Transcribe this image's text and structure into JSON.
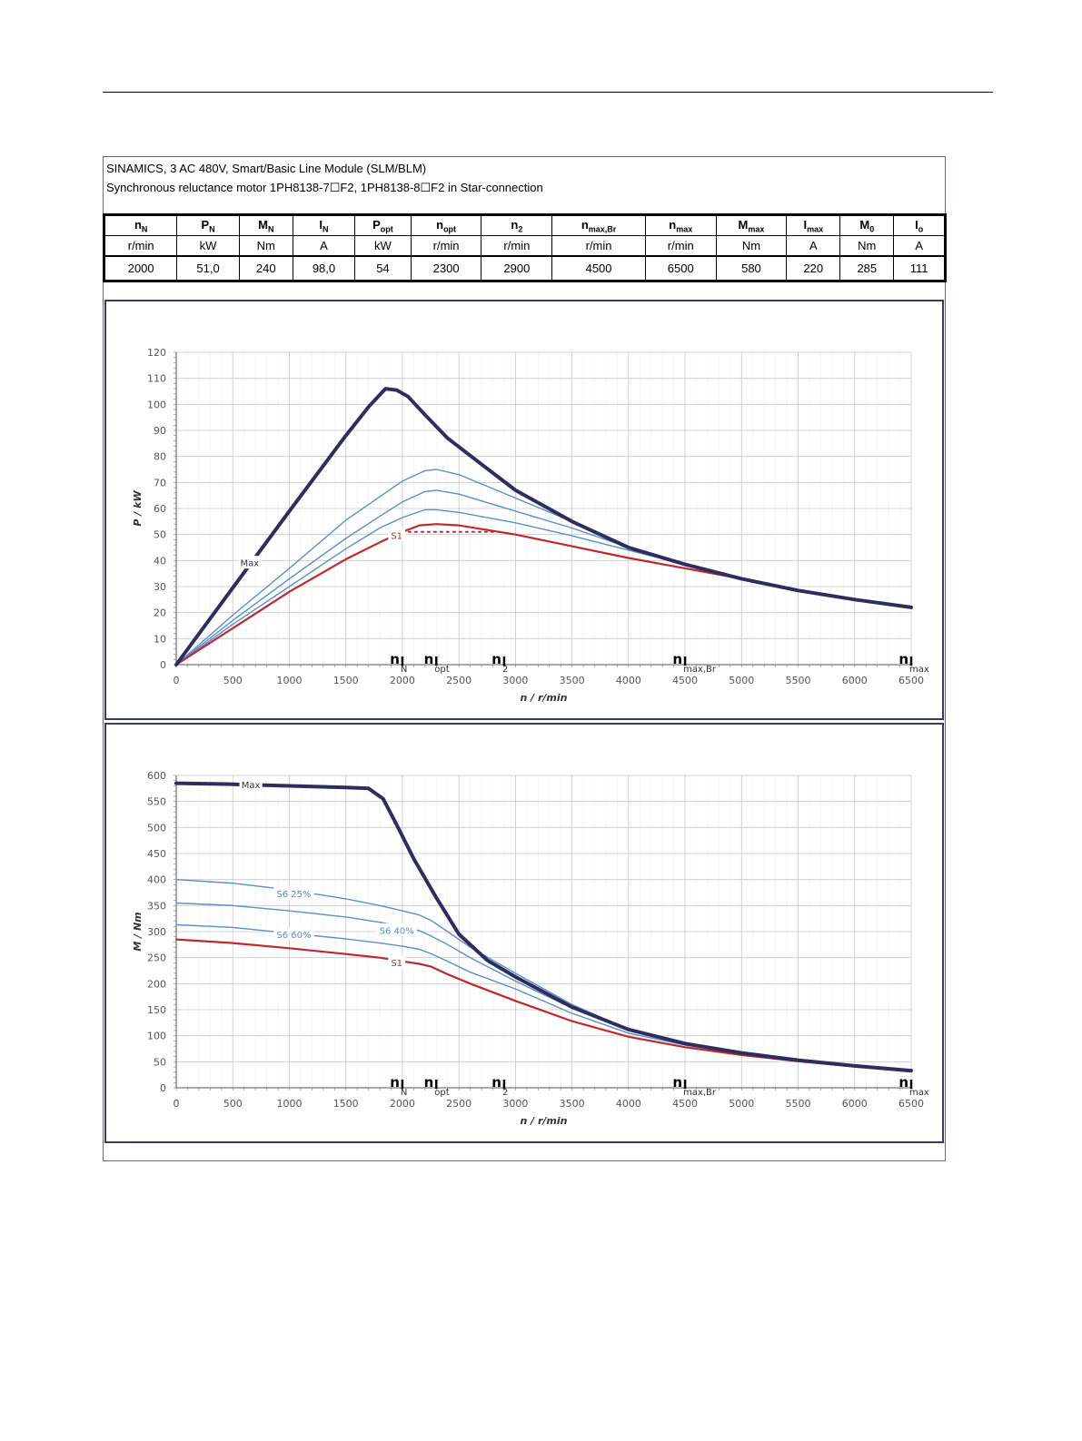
{
  "header": {
    "line1": "SINAMICS, 3 AC 480V, Smart/Basic Line Module (SLM/BLM)",
    "line2": "Synchronous reluctance motor  1PH8138-7☐F2,  1PH8138-8☐F2   in Star-connection"
  },
  "table": {
    "columns": [
      {
        "sym": "n",
        "sub": "N",
        "unit": "r/min",
        "value": "2000"
      },
      {
        "sym": "P",
        "sub": "N",
        "unit": "kW",
        "value": "51,0"
      },
      {
        "sym": "M",
        "sub": "N",
        "unit": "Nm",
        "value": "240"
      },
      {
        "sym": "I",
        "sub": "N",
        "unit": "A",
        "value": "98,0"
      },
      {
        "sym": "P",
        "sub": "opt",
        "unit": "kW",
        "value": "54"
      },
      {
        "sym": "n",
        "sub": "opt",
        "unit": "r/min",
        "value": "2300"
      },
      {
        "sym": "n",
        "sub": "2",
        "unit": "r/min",
        "value": "2900"
      },
      {
        "sym": "n",
        "sub": "max,Br",
        "unit": "r/min",
        "value": "4500"
      },
      {
        "sym": "n",
        "sub": "max",
        "unit": "r/min",
        "value": "6500"
      },
      {
        "sym": "M",
        "sub": "max",
        "unit": "Nm",
        "value": "580"
      },
      {
        "sym": "I",
        "sub": "max",
        "unit": "A",
        "value": "220"
      },
      {
        "sym": "M",
        "sub": "0",
        "unit": "Nm",
        "value": "285"
      },
      {
        "sym": "I",
        "sub": "o",
        "unit": "A",
        "value": "111"
      }
    ]
  },
  "colors": {
    "max": "#2e2d5e",
    "s1": "#c0282e",
    "s6": "#5b8fc7",
    "grid": "#c8c8c8"
  },
  "chart_data": [
    {
      "type": "line",
      "xlabel": "n / r/min",
      "ylabel": "P / kW",
      "xlim": [
        0,
        6500
      ],
      "ylim": [
        0,
        120
      ],
      "xticks": [
        0,
        500,
        1000,
        1500,
        2000,
        2500,
        3000,
        3500,
        4000,
        4500,
        5000,
        5500,
        6000,
        6500
      ],
      "yticks": [
        0,
        10,
        20,
        30,
        40,
        50,
        60,
        70,
        80,
        90,
        100,
        110,
        120
      ],
      "markers": [
        {
          "x": 2000,
          "base": "n",
          "sub": "N"
        },
        {
          "x": 2300,
          "base": "n",
          "sub": "opt"
        },
        {
          "x": 2900,
          "base": "n",
          "sub": "2"
        },
        {
          "x": 4500,
          "base": "n",
          "sub": "max,Br"
        },
        {
          "x": 6500,
          "base": "n",
          "sub": "max"
        }
      ],
      "series": [
        {
          "name": "Max",
          "role": "max",
          "label_at": [
            650,
            39
          ],
          "x": [
            0,
            500,
            1000,
            1500,
            1700,
            1850,
            1950,
            2050,
            2200,
            2400,
            2700,
            3000,
            3500,
            4000,
            4500,
            5000,
            5500,
            6000,
            6500
          ],
          "y": [
            0,
            29.5,
            59,
            88,
            99,
            106,
            105.5,
            103,
            96,
            87,
            77,
            67,
            55,
            45,
            38.5,
            33,
            28.5,
            25,
            22
          ]
        },
        {
          "name": "",
          "role": "s6",
          "x": [
            0,
            500,
            1000,
            1500,
            1800,
            2000,
            2200,
            2300,
            2500,
            3000,
            3500,
            4000,
            4500,
            5000,
            5500,
            6000,
            6500
          ],
          "y": [
            0,
            19,
            37,
            55.5,
            64.5,
            70.5,
            74.5,
            75,
            73,
            64,
            55,
            45.5,
            38.5,
            33,
            28.5,
            25,
            22
          ]
        },
        {
          "name": "",
          "role": "s6",
          "x": [
            0,
            500,
            1000,
            1500,
            1800,
            2000,
            2200,
            2300,
            2500,
            3000,
            3500,
            4000,
            4500,
            5000,
            5500,
            6000,
            6500
          ],
          "y": [
            0,
            17,
            33,
            48.5,
            57,
            62.5,
            66.5,
            67,
            65.5,
            59,
            52.5,
            45,
            38.5,
            33,
            28.5,
            25,
            22
          ]
        },
        {
          "name": "",
          "role": "s6",
          "x": [
            0,
            500,
            1000,
            1500,
            1800,
            2000,
            2200,
            2300,
            2500,
            3000,
            3500,
            4000,
            4500,
            5000,
            5500,
            6000,
            6500
          ],
          "y": [
            0,
            15.5,
            30,
            44.5,
            52.5,
            56.5,
            59.5,
            59.5,
            58.5,
            54.5,
            49.5,
            44,
            38.5,
            33,
            28.5,
            25,
            22
          ]
        },
        {
          "name": "S1",
          "role": "s1",
          "label_at": [
            1950,
            49.5
          ],
          "x": [
            0,
            500,
            1000,
            1500,
            1800,
            2000,
            2150,
            2300,
            2500,
            3000,
            3500,
            4000,
            4500,
            5000,
            5500,
            6000,
            6500
          ],
          "y": [
            0,
            14,
            28,
            40.5,
            47,
            51,
            53.5,
            54,
            53.5,
            50,
            45.5,
            41,
            37,
            33,
            28.5,
            25,
            22
          ]
        },
        {
          "name": "",
          "role": "s1-dotted",
          "x": [
            2000,
            2900
          ],
          "y": [
            51,
            51
          ]
        }
      ]
    },
    {
      "type": "line",
      "xlabel": "n / r/min",
      "ylabel": "M / Nm",
      "xlim": [
        0,
        6500
      ],
      "ylim": [
        0,
        600
      ],
      "xticks": [
        0,
        500,
        1000,
        1500,
        2000,
        2500,
        3000,
        3500,
        4000,
        4500,
        5000,
        5500,
        6000,
        6500
      ],
      "yticks": [
        0,
        50,
        100,
        150,
        200,
        250,
        300,
        350,
        400,
        450,
        500,
        550,
        600
      ],
      "markers": [
        {
          "x": 2000,
          "base": "n",
          "sub": "N"
        },
        {
          "x": 2300,
          "base": "n",
          "sub": "opt"
        },
        {
          "x": 2900,
          "base": "n",
          "sub": "2"
        },
        {
          "x": 4500,
          "base": "n",
          "sub": "max,Br"
        },
        {
          "x": 6500,
          "base": "n",
          "sub": "max"
        }
      ],
      "series": [
        {
          "name": "Max",
          "role": "max",
          "label_at": [
            660,
            582
          ],
          "x": [
            0,
            500,
            1000,
            1500,
            1700,
            1830,
            1950,
            2100,
            2300,
            2500,
            2750,
            3000,
            3500,
            4000,
            4500,
            5000,
            5500,
            6000,
            6500
          ],
          "y": [
            585,
            583,
            580,
            577,
            575,
            555,
            505,
            440,
            365,
            295,
            245,
            213,
            155,
            112,
            85,
            67,
            53,
            42,
            33
          ]
        },
        {
          "name": "S6 25%",
          "role": "s6",
          "label_at": [
            1040,
            372
          ],
          "x": [
            0,
            500,
            1000,
            1500,
            1800,
            2000,
            2150,
            2250,
            2400,
            2600,
            3000,
            3500,
            4000,
            4500,
            5000,
            5500,
            6000,
            6500
          ],
          "y": [
            400,
            393,
            380,
            363,
            350,
            340,
            332,
            322,
            300,
            270,
            220,
            160,
            112,
            85,
            67,
            53,
            42,
            33
          ]
        },
        {
          "name": "S6 40%",
          "role": "s6",
          "label_at": [
            1950,
            302
          ],
          "x": [
            0,
            500,
            1000,
            1500,
            1800,
            2000,
            2150,
            2250,
            2400,
            2600,
            3000,
            3500,
            4000,
            4500,
            5000,
            5500,
            6000,
            6500
          ],
          "y": [
            355,
            350,
            340,
            328,
            318,
            310,
            302,
            292,
            275,
            250,
            205,
            153,
            110,
            84,
            66,
            53,
            42,
            33
          ]
        },
        {
          "name": "S6 60%",
          "role": "s6",
          "label_at": [
            1040,
            294
          ],
          "x": [
            0,
            500,
            1000,
            1500,
            1800,
            2000,
            2150,
            2250,
            2400,
            2600,
            3000,
            3500,
            4000,
            4500,
            5000,
            5500,
            6000,
            6500
          ],
          "y": [
            313,
            308,
            297,
            286,
            278,
            272,
            266,
            258,
            243,
            222,
            190,
            143,
            105,
            82,
            65,
            52,
            41,
            33
          ]
        },
        {
          "name": "S1",
          "role": "s1",
          "label_at": [
            1950,
            240
          ],
          "x": [
            0,
            500,
            1000,
            1500,
            1800,
            2000,
            2150,
            2250,
            2400,
            2600,
            3000,
            3500,
            4000,
            4500,
            5000,
            5500,
            6000,
            6500
          ],
          "y": [
            285,
            278,
            268,
            257,
            250,
            243,
            238,
            233,
            218,
            200,
            167,
            128,
            98,
            78,
            63,
            51,
            41,
            31
          ]
        }
      ]
    }
  ]
}
